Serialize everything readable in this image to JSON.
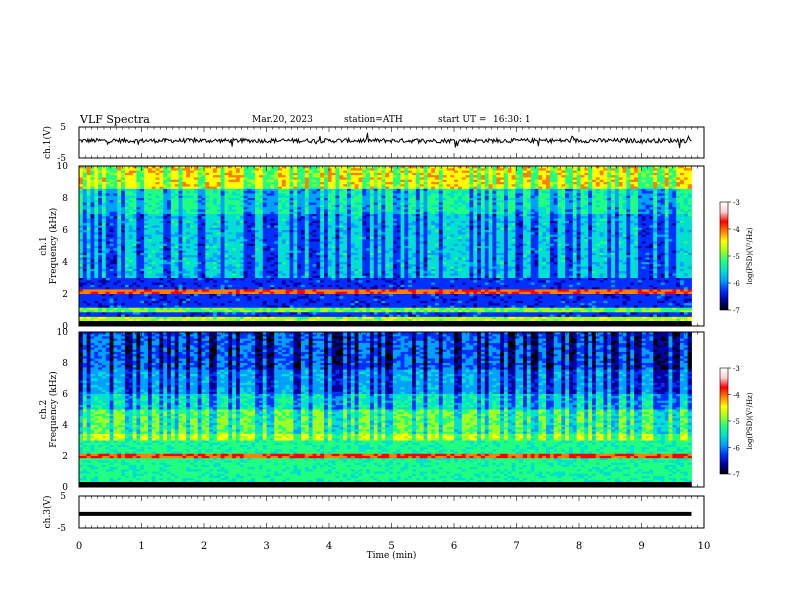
{
  "header": {
    "title": "VLF Spectra",
    "date": "Mar.20, 2023",
    "station": "station=ATH",
    "start": "start UT =",
    "start_time": "16:30: 1"
  },
  "chart_data": [
    {
      "type": "line",
      "id": "ch1-waveform",
      "ylabel": "ch.1(V)",
      "ylim": [
        -5,
        5
      ],
      "yticks": [
        "5",
        "-5"
      ],
      "xlim": [
        0,
        10
      ],
      "data_end_min": 9.8,
      "baseline": 0.6,
      "description_note": ""
    },
    {
      "type": "heatmap",
      "id": "ch1-spectrogram",
      "ylabel_top": "ch.1",
      "ylabel": "Frequency (kHz)",
      "ylim": [
        0,
        10
      ],
      "yticks": [
        "0",
        "2",
        "4",
        "6",
        "8",
        "10"
      ],
      "xlim": [
        0,
        10
      ],
      "data_end_min": 9.8,
      "colorbar": {
        "label": "log(PSD)(V²/Hz)",
        "range": [
          -7,
          -3
        ],
        "ticks": [
          "-3",
          "-4",
          "-5",
          "-6",
          "-7"
        ],
        "colors": [
          "#000000",
          "#0000a0",
          "#0030ff",
          "#00a0ff",
          "#00e0d0",
          "#20ff80",
          "#a0ff20",
          "#ffff00",
          "#ff8000",
          "#ff0000",
          "#ffd0d0",
          "#ffffff"
        ]
      }
    },
    {
      "type": "heatmap",
      "id": "ch2-spectrogram",
      "ylabel_top": "ch.2",
      "ylabel": "Frequency (kHz)",
      "ylim": [
        0,
        10
      ],
      "yticks": [
        "0",
        "2",
        "4",
        "6",
        "8",
        "10"
      ],
      "xlim": [
        0,
        10
      ],
      "data_end_min": 9.8,
      "colorbar": {
        "label": "log(PSD)(V²/Hz)",
        "range": [
          -7,
          -3
        ],
        "ticks": [
          "-3",
          "-4",
          "-5",
          "-6",
          "-7"
        ]
      }
    },
    {
      "type": "line",
      "id": "ch3-waveform",
      "ylabel": "ch.3(V)",
      "ylim": [
        -5,
        5
      ],
      "yticks": [
        "5",
        "-5"
      ],
      "xlim": [
        0,
        10
      ],
      "data_end_min": 9.8,
      "baseline": -0.6,
      "xlabel": "Time (min)",
      "xticks": [
        "0",
        "1",
        "2",
        "3",
        "4",
        "5",
        "6",
        "7",
        "8",
        "9",
        "10"
      ]
    }
  ]
}
